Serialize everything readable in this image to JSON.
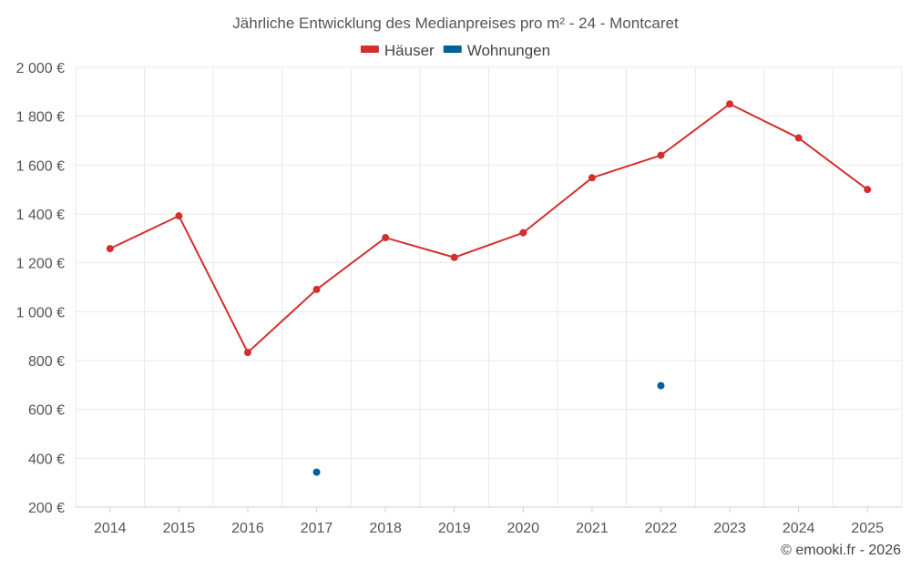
{
  "chart_data": {
    "type": "line",
    "title": "Jährliche Entwicklung des Medianpreises pro m² - 24 - Montcaret",
    "categories": [
      "2014",
      "2015",
      "2016",
      "2017",
      "2018",
      "2019",
      "2020",
      "2021",
      "2022",
      "2023",
      "2024",
      "2025"
    ],
    "series": [
      {
        "name": "Häuser",
        "color": "#d32f2f",
        "mode": "line",
        "values": [
          1258,
          1392,
          833,
          1091,
          1303,
          1222,
          1323,
          1548,
          1640,
          1850,
          1711,
          1500
        ]
      },
      {
        "name": "Wohnungen",
        "color": "#01619b",
        "mode": "markers",
        "values": [
          null,
          null,
          null,
          343,
          null,
          null,
          null,
          null,
          697,
          null,
          null,
          null
        ]
      }
    ],
    "ylim": [
      200,
      2000
    ],
    "yticks": [
      200,
      400,
      600,
      800,
      1000,
      1200,
      1400,
      1600,
      1800,
      2000
    ],
    "ytick_labels": [
      "200 €",
      "400 €",
      "600 €",
      "800 €",
      "1 000 €",
      "1 200 €",
      "1 400 €",
      "1 600 €",
      "1 800 €",
      "2 000 €"
    ],
    "legend_position": "top-center",
    "grid": true
  },
  "credit": "© emooki.fr - 2026"
}
